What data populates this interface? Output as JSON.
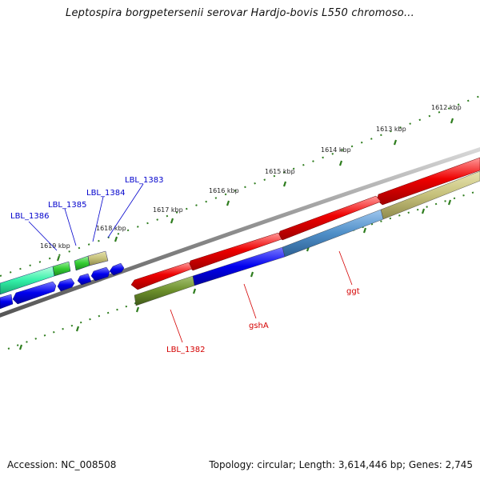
{
  "header": {
    "title": "Leptospira borgpetersenii serovar Hardjo-bovis L550 chromoso..."
  },
  "footer": {
    "accession": "Accession: NC_008508",
    "summary": "Topology: circular; Length: 3,614,446 bp; Genes: 2,745"
  },
  "map": {
    "tick_labels": [
      "1612 kbp",
      "1613 kbp",
      "1614 kbp",
      "1615 kbp",
      "1616 kbp",
      "1617 kbp",
      "1618 kbp",
      "1619 kbp"
    ],
    "gene_labels": {
      "forward": [
        "ggt",
        "gshA",
        "LBL_1382"
      ],
      "reverse": [
        "LBL_1383",
        "LBL_1384",
        "LBL_1385",
        "LBL_1386"
      ]
    },
    "colors": {
      "backbone": "#8c8c8c",
      "tick": "#2e7d1e",
      "cds_forward": "#ee0000",
      "cds_reverse": "#0000ee",
      "forward_label": "#d40000",
      "reverse_label": "#0000cc"
    }
  }
}
